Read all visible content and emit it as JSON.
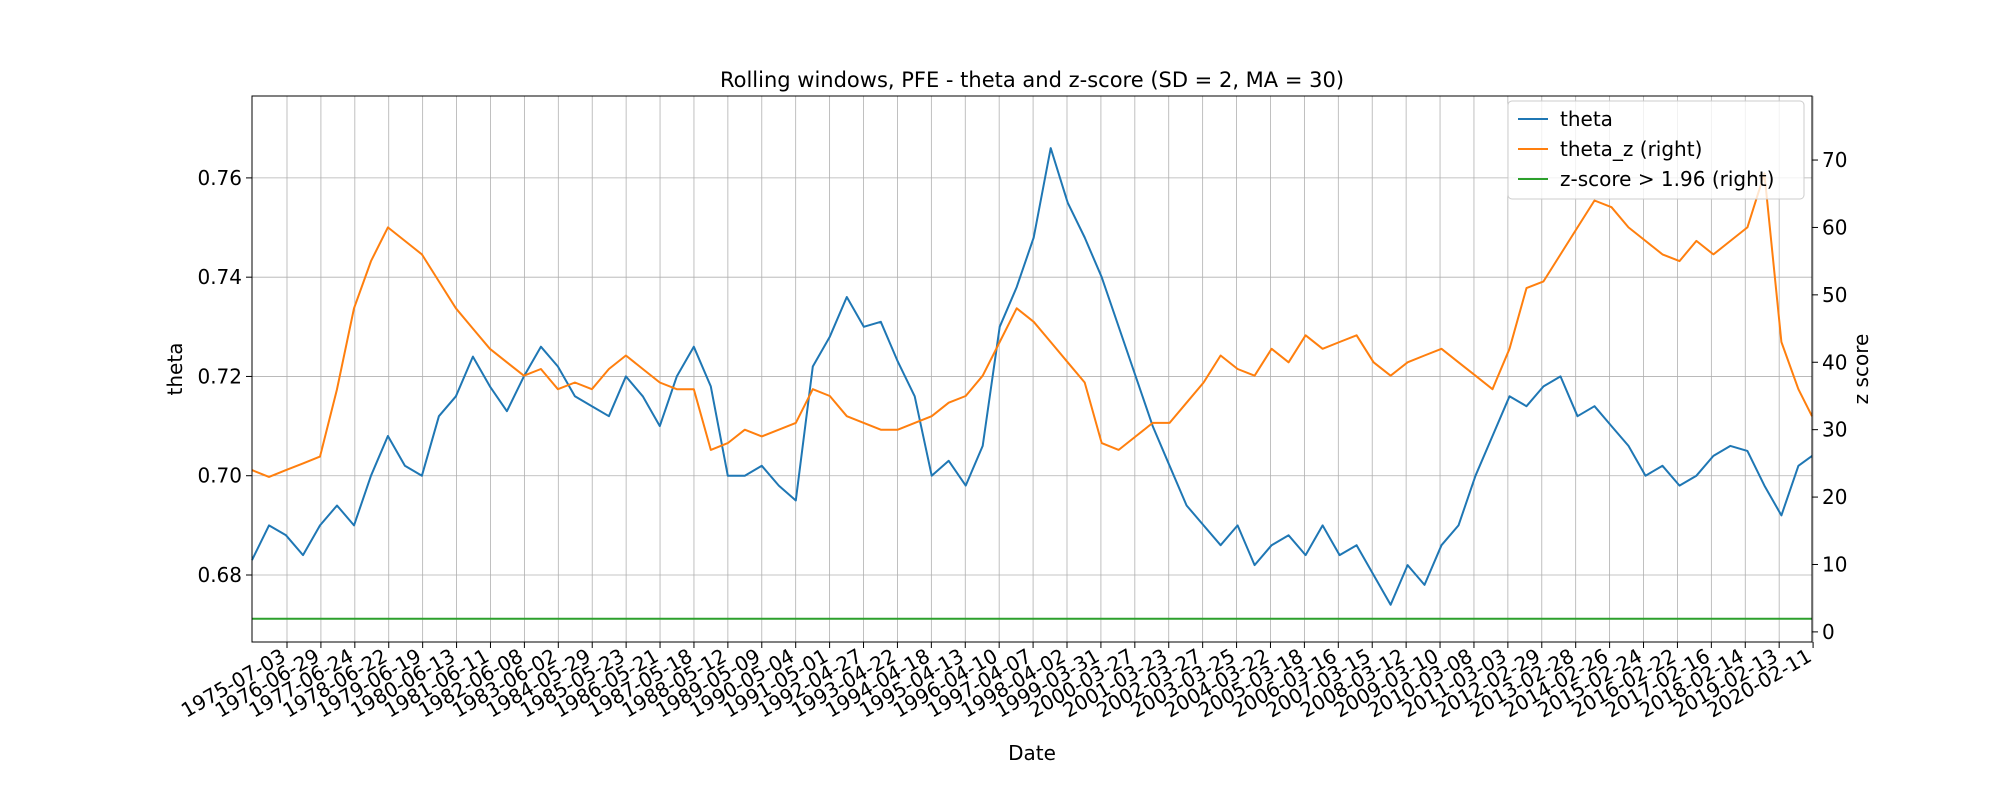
{
  "chart_data": {
    "type": "line",
    "title": "Rolling windows, PFE - theta and z-score (SD = 2, MA = 30)",
    "xlabel": "Date",
    "ylabel_left": "theta",
    "ylabel_right": "z score",
    "ylim_left": [
      0.6665,
      0.7765
    ],
    "ylim_right": [
      -1.5,
      79.5
    ],
    "yticks_left": [
      0.68,
      0.7,
      0.72,
      0.74,
      0.76
    ],
    "yticks_left_labels": [
      "0.68",
      "0.70",
      "0.72",
      "0.74",
      "0.76"
    ],
    "yticks_right": [
      0,
      10,
      20,
      30,
      40,
      50,
      60,
      70
    ],
    "yticks_right_labels": [
      "0",
      "10",
      "20",
      "30",
      "40",
      "50",
      "60",
      "70"
    ],
    "x_tick_labels": [
      "1975-07-03",
      "1976-06-29",
      "1977-06-24",
      "1978-06-22",
      "1979-06-19",
      "1980-06-13",
      "1981-06-11",
      "1982-06-08",
      "1983-06-02",
      "1984-05-29",
      "1985-05-23",
      "1986-05-21",
      "1987-05-18",
      "1988-05-12",
      "1989-05-09",
      "1990-05-04",
      "1991-05-01",
      "1992-04-27",
      "1993-04-22",
      "1994-04-18",
      "1995-04-13",
      "1996-04-10",
      "1997-04-07",
      "1998-04-02",
      "1999-03-31",
      "2000-03-27",
      "2001-03-23",
      "2002-03-27",
      "2003-03-25",
      "2004-03-22",
      "2005-03-18",
      "2006-03-16",
      "2007-03-15",
      "2008-03-12",
      "2009-03-10",
      "2010-03-08",
      "2011-03-03",
      "2012-02-29",
      "2013-02-28",
      "2014-02-26",
      "2015-02-24",
      "2016-02-22",
      "2017-02-16",
      "2018-02-14",
      "2019-02-13",
      "2020-02-11"
    ],
    "grid": true,
    "legend_position": "top-right",
    "series": [
      {
        "name": "theta",
        "axis": "left",
        "color": "#1f77b4",
        "x": [
          1975.5,
          1976.0,
          1976.5,
          1977.0,
          1977.5,
          1978.0,
          1978.5,
          1979.0,
          1979.5,
          1980.0,
          1980.5,
          1981.0,
          1981.5,
          1982.0,
          1982.5,
          1983.0,
          1983.5,
          1984.0,
          1984.5,
          1985.0,
          1985.5,
          1986.0,
          1986.5,
          1987.0,
          1987.5,
          1988.0,
          1988.5,
          1989.0,
          1989.5,
          1990.0,
          1990.5,
          1991.0,
          1991.5,
          1992.0,
          1992.5,
          1993.0,
          1993.5,
          1994.0,
          1994.5,
          1995.0,
          1995.5,
          1996.0,
          1996.5,
          1997.0,
          1997.5,
          1998.0,
          1998.5,
          1999.0,
          1999.5,
          2000.0,
          2000.5,
          2001.0,
          2001.5,
          2002.0,
          2002.5,
          2003.0,
          2003.5,
          2004.0,
          2004.5,
          2005.0,
          2005.5,
          2006.0,
          2006.5,
          2007.0,
          2007.5,
          2008.0,
          2008.5,
          2009.0,
          2009.5,
          2010.0,
          2010.5,
          2011.0,
          2011.5,
          2012.0,
          2012.5,
          2013.0,
          2013.5,
          2014.0,
          2014.5,
          2015.0,
          2015.5,
          2016.0,
          2016.5,
          2017.0,
          2017.5,
          2018.0,
          2018.5,
          2019.0,
          2019.5,
          2020.0,
          2020.5,
          2021.0,
          2021.4
        ],
        "values": [
          0.683,
          0.69,
          0.688,
          0.684,
          0.69,
          0.694,
          0.69,
          0.7,
          0.708,
          0.702,
          0.7,
          0.712,
          0.716,
          0.724,
          0.718,
          0.713,
          0.72,
          0.726,
          0.722,
          0.716,
          0.714,
          0.712,
          0.72,
          0.716,
          0.71,
          0.72,
          0.726,
          0.718,
          0.7,
          0.7,
          0.702,
          0.698,
          0.695,
          0.722,
          0.728,
          0.736,
          0.73,
          0.731,
          0.723,
          0.716,
          0.7,
          0.703,
          0.698,
          0.706,
          0.73,
          0.738,
          0.748,
          0.766,
          0.755,
          0.748,
          0.74,
          0.73,
          0.72,
          0.71,
          0.702,
          0.694,
          0.69,
          0.686,
          0.69,
          0.682,
          0.686,
          0.688,
          0.684,
          0.69,
          0.684,
          0.686,
          0.68,
          0.674,
          0.682,
          0.678,
          0.686,
          0.69,
          0.7,
          0.708,
          0.716,
          0.714,
          0.718,
          0.72,
          0.712,
          0.714,
          0.71,
          0.706,
          0.7,
          0.702,
          0.698,
          0.7,
          0.704,
          0.706,
          0.705,
          0.698,
          0.692,
          0.702,
          0.704
        ]
      },
      {
        "name": "theta_z (right)",
        "axis": "right",
        "color": "#ff7f0e",
        "x": [
          1975.5,
          1976.0,
          1976.5,
          1977.0,
          1977.5,
          1978.0,
          1978.5,
          1979.0,
          1979.5,
          1980.0,
          1980.5,
          1981.0,
          1981.5,
          1982.0,
          1982.5,
          1983.0,
          1983.5,
          1984.0,
          1984.5,
          1985.0,
          1985.5,
          1986.0,
          1986.5,
          1987.0,
          1987.5,
          1988.0,
          1988.5,
          1989.0,
          1989.5,
          1990.0,
          1990.5,
          1991.0,
          1991.5,
          1992.0,
          1992.5,
          1993.0,
          1993.5,
          1994.0,
          1994.5,
          1995.0,
          1995.5,
          1996.0,
          1996.5,
          1997.0,
          1997.5,
          1998.0,
          1998.5,
          1999.0,
          1999.5,
          2000.0,
          2000.5,
          2001.0,
          2001.5,
          2002.0,
          2002.5,
          2003.0,
          2003.5,
          2004.0,
          2004.5,
          2005.0,
          2005.5,
          2006.0,
          2006.5,
          2007.0,
          2007.5,
          2008.0,
          2008.5,
          2009.0,
          2009.5,
          2010.0,
          2010.5,
          2011.0,
          2011.5,
          2012.0,
          2012.5,
          2013.0,
          2013.5,
          2014.0,
          2014.5,
          2015.0,
          2015.5,
          2016.0,
          2016.5,
          2017.0,
          2017.5,
          2018.0,
          2018.5,
          2019.0,
          2019.5,
          2020.0,
          2020.5,
          2021.0,
          2021.4
        ],
        "values": [
          24,
          23,
          24,
          25,
          26,
          36,
          48,
          55,
          60,
          58,
          56,
          52,
          48,
          45,
          42,
          40,
          38,
          39,
          36,
          37,
          36,
          39,
          41,
          39,
          37,
          36,
          36,
          27,
          28,
          30,
          29,
          30,
          31,
          36,
          35,
          32,
          31,
          30,
          30,
          31,
          32,
          34,
          35,
          38,
          43,
          48,
          46,
          43,
          40,
          37,
          28,
          27,
          29,
          31,
          31,
          34,
          37,
          41,
          39,
          38,
          42,
          40,
          44,
          42,
          43,
          44,
          40,
          38,
          40,
          41,
          42,
          40,
          38,
          36,
          42,
          51,
          52,
          56,
          60,
          64,
          63,
          60,
          58,
          56,
          55,
          58,
          56,
          58,
          60,
          68,
          43,
          36,
          32
        ]
      },
      {
        "name": "z-score > 1.96 (right)",
        "axis": "right",
        "color": "#2ca02c",
        "x": [
          1975.5,
          2021.4
        ],
        "values": [
          1.96,
          1.96
        ]
      }
    ]
  }
}
